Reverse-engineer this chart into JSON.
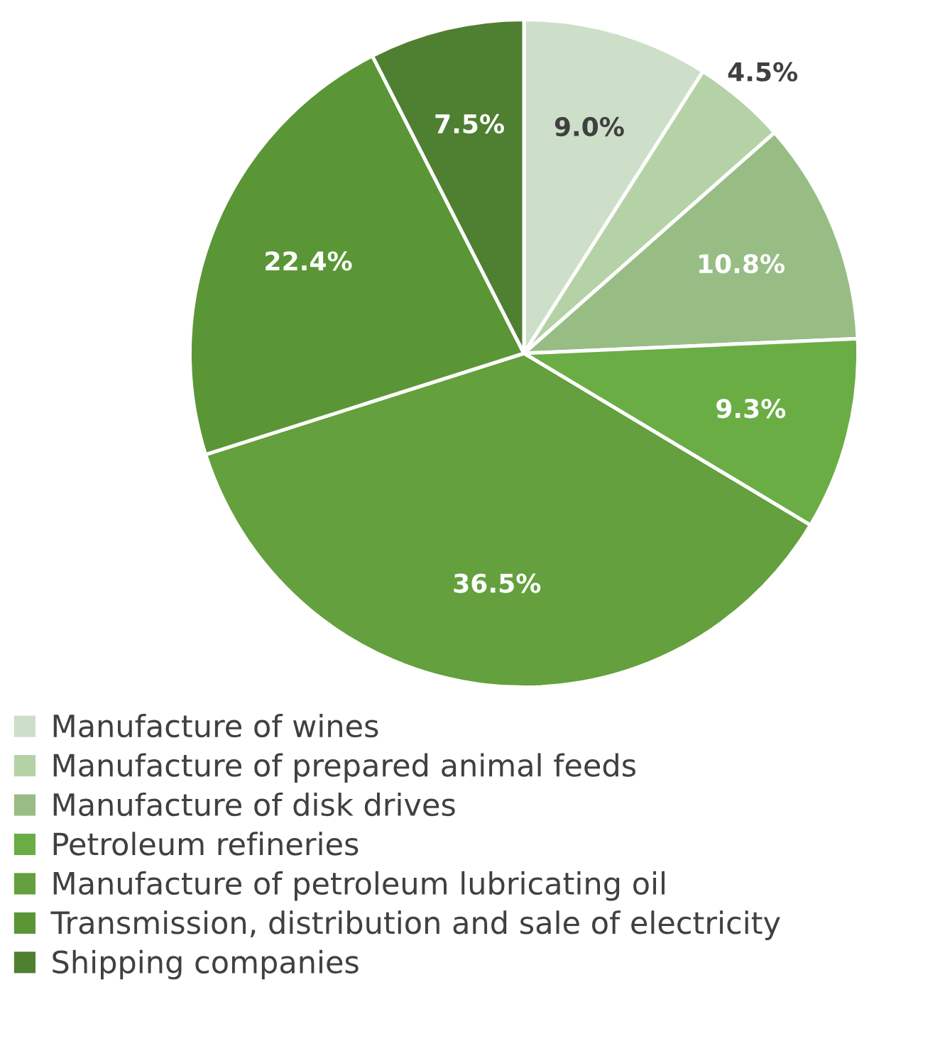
{
  "chart_data": {
    "type": "pie",
    "categories": [
      "Manufacture of wines",
      "Manufacture of prepared animal feeds",
      "Manufacture of disk drives",
      "Petroleum refineries",
      "Manufacture of petroleum lubricating oil",
      "Transmission, distribution and sale of electricity",
      "Shipping companies"
    ],
    "values": [
      9.0,
      4.5,
      10.8,
      9.3,
      36.5,
      22.4,
      7.5
    ],
    "colors": [
      "#cddfc8",
      "#b5d2a6",
      "#97bd85",
      "#6aad45",
      "#64a03d",
      "#5a9636",
      "#4f7f31"
    ],
    "value_labels": [
      "9.0%",
      "4.5%",
      "10.8%",
      "9.3%",
      "36.5%",
      "22.4%",
      "7.5%"
    ],
    "legend": "bottom"
  }
}
